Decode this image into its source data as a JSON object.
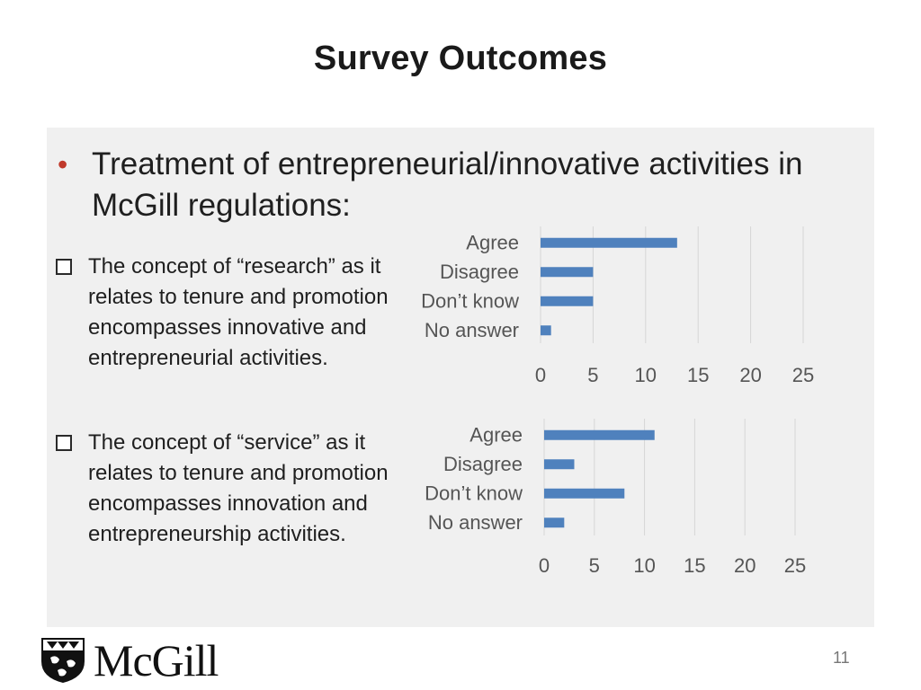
{
  "slide": {
    "title": "Survey Outcomes",
    "main_bullet": "Treatment of entrepreneurial/innovative activities in McGill regulations:",
    "sub1": "The concept of “research” as it relates to tenure and promotion encompasses innovative and entrepreneurial activities.",
    "sub2": "The concept of “service” as it relates to tenure and promotion encompasses innovation and entrepreneurship activities.",
    "page_number": "11",
    "logo_text": "McGill",
    "colors": {
      "bar": "#4f81bd",
      "bullet": "#c0392b",
      "panel": "#f0f0f0"
    }
  },
  "chart_data": [
    {
      "type": "bar",
      "orientation": "horizontal",
      "categories": [
        "Agree",
        "Disagree",
        "Don’t know",
        "No answer"
      ],
      "values": [
        13,
        5,
        5,
        1
      ],
      "xlim": [
        0,
        25
      ],
      "xticks": [
        0,
        5,
        10,
        15,
        20,
        25
      ],
      "grid": true
    },
    {
      "type": "bar",
      "orientation": "horizontal",
      "categories": [
        "Agree",
        "Disagree",
        "Don’t know",
        "No answer"
      ],
      "values": [
        11,
        3,
        8,
        2
      ],
      "xlim": [
        0,
        25
      ],
      "xticks": [
        0,
        5,
        10,
        15,
        20,
        25
      ],
      "grid": true
    }
  ]
}
